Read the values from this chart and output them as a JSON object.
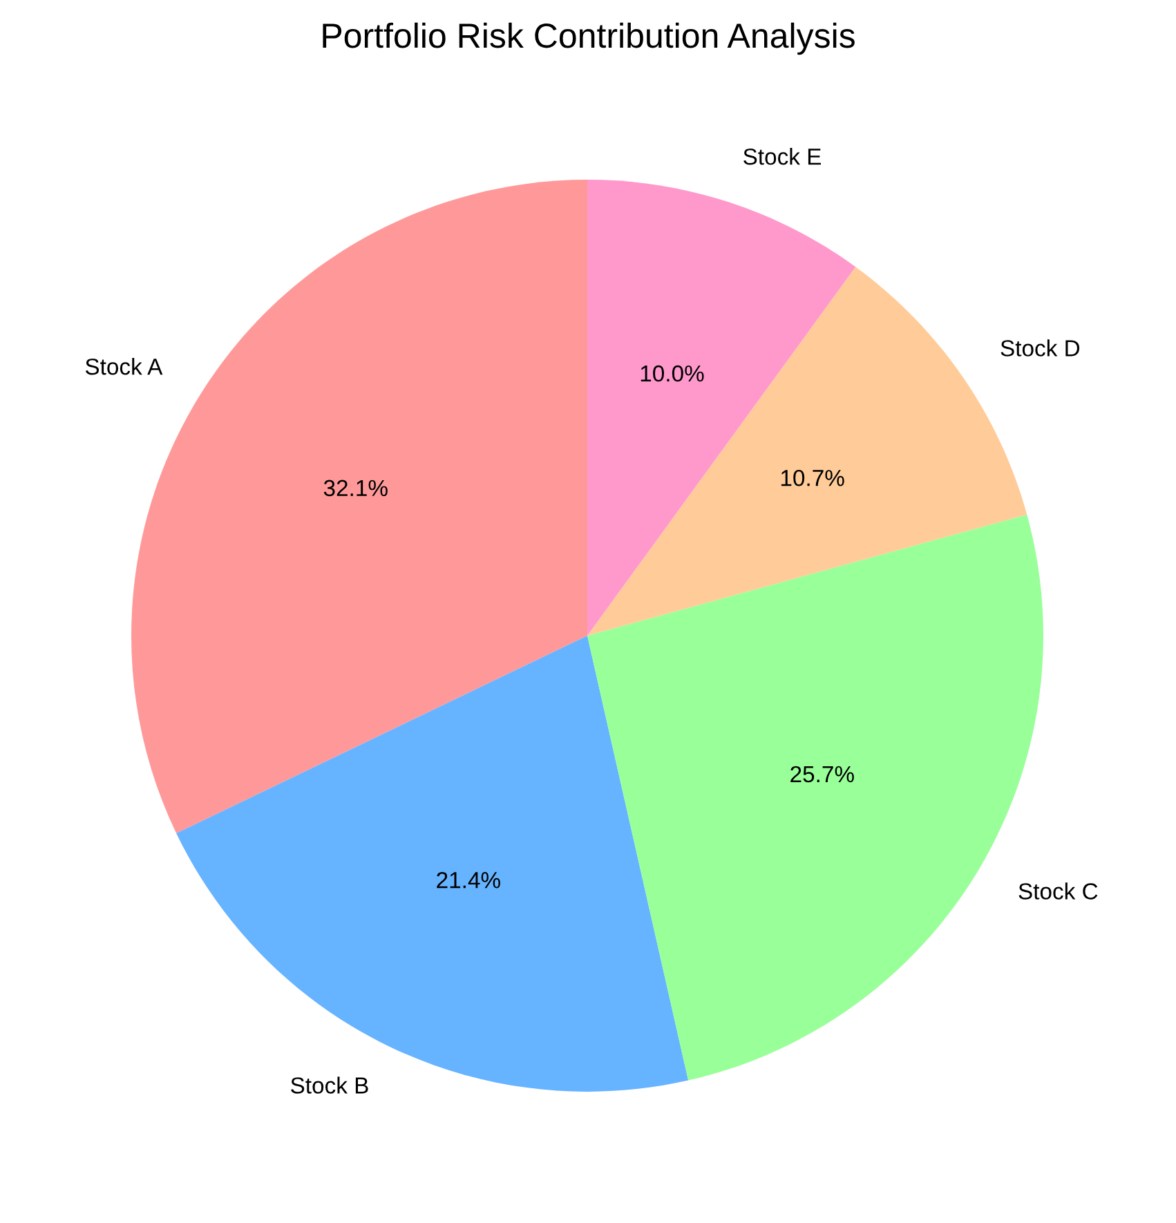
{
  "chart_data": {
    "type": "pie",
    "title": "Portfolio Risk Contribution Analysis",
    "categories": [
      "Stock A",
      "Stock B",
      "Stock C",
      "Stock D",
      "Stock E"
    ],
    "values": [
      32.1,
      21.4,
      25.7,
      10.7,
      10.0
    ],
    "value_labels": [
      "32.1%",
      "21.4%",
      "25.7%",
      "10.7%",
      "10.0%"
    ],
    "colors": [
      "#ff9999",
      "#66b3ff",
      "#99ff99",
      "#ffcc99",
      "#ff99cc"
    ]
  }
}
